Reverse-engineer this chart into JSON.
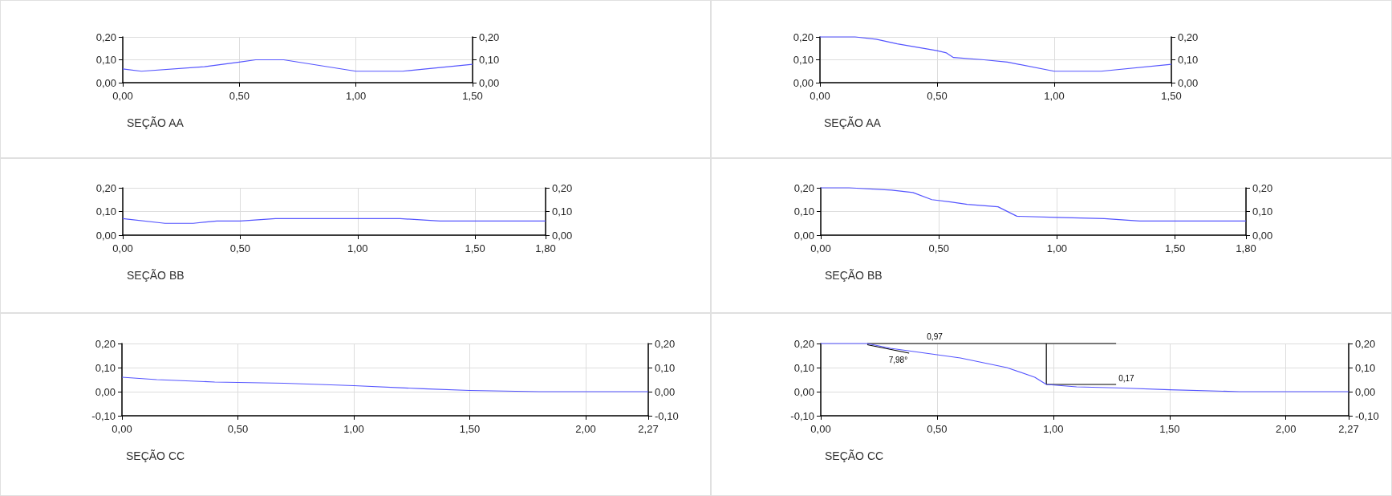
{
  "chart_data": [
    {
      "type": "line",
      "title": "SEÇÃO AA",
      "grid": true,
      "xlim": [
        0,
        1.5
      ],
      "xticks": [
        {
          "value": 0,
          "label": "0,00"
        },
        {
          "value": 0.5,
          "label": "0,50"
        },
        {
          "value": 1,
          "label": "1,00"
        },
        {
          "value": 1.5,
          "label": "1,50"
        }
      ],
      "ylim": [
        0,
        0.2
      ],
      "yticks": [
        {
          "value": 0,
          "label": "0,00"
        },
        {
          "value": 0.1,
          "label": "0,10"
        },
        {
          "value": 0.2,
          "label": "0,20"
        }
      ],
      "y2lim": [
        0,
        0.2
      ],
      "y2ticks": [
        {
          "value": 0,
          "label": "0,00"
        },
        {
          "value": 0.1,
          "label": "0,10"
        },
        {
          "value": 0.2,
          "label": "0,20"
        }
      ],
      "series": [
        {
          "color": "#5555ff",
          "x": [
            0,
            0.08,
            0.35,
            0.5,
            0.57,
            0.69,
            1.0,
            1.2,
            1.5
          ],
          "values": [
            0.06,
            0.05,
            0.07,
            0.09,
            0.1,
            0.1,
            0.05,
            0.05,
            0.08
          ]
        }
      ]
    },
    {
      "type": "line",
      "title": "SEÇÃO AA",
      "grid": true,
      "xlim": [
        0,
        1.5
      ],
      "xticks": [
        {
          "value": 0,
          "label": "0,00"
        },
        {
          "value": 0.5,
          "label": "0,50"
        },
        {
          "value": 1,
          "label": "1,00"
        },
        {
          "value": 1.5,
          "label": "1,50"
        }
      ],
      "ylim": [
        0,
        0.2
      ],
      "yticks": [
        {
          "value": 0,
          "label": "0,00"
        },
        {
          "value": 0.1,
          "label": "0,10"
        },
        {
          "value": 0.2,
          "label": "0,20"
        }
      ],
      "y2lim": [
        0,
        0.2
      ],
      "y2ticks": [
        {
          "value": 0,
          "label": "0,00"
        },
        {
          "value": 0.1,
          "label": "0,10"
        },
        {
          "value": 0.2,
          "label": "0,20"
        }
      ],
      "series": [
        {
          "color": "#5555ff",
          "x": [
            0,
            0.15,
            0.24,
            0.33,
            0.5,
            0.54,
            0.57,
            0.7,
            0.8,
            1.0,
            1.2,
            1.5
          ],
          "values": [
            0.2,
            0.2,
            0.19,
            0.17,
            0.14,
            0.13,
            0.11,
            0.1,
            0.09,
            0.05,
            0.05,
            0.08
          ]
        }
      ]
    },
    {
      "type": "line",
      "title": "SEÇÃO BB",
      "grid": true,
      "xlim": [
        0,
        1.8
      ],
      "xticks": [
        {
          "value": 0,
          "label": "0,00"
        },
        {
          "value": 0.5,
          "label": "0,50"
        },
        {
          "value": 1,
          "label": "1,00"
        },
        {
          "value": 1.5,
          "label": "1,50"
        },
        {
          "value": 1.8,
          "label": "1,80"
        }
      ],
      "ylim": [
        0,
        0.2
      ],
      "yticks": [
        {
          "value": 0,
          "label": "0,00"
        },
        {
          "value": 0.1,
          "label": "0,10"
        },
        {
          "value": 0.2,
          "label": "0,20"
        }
      ],
      "y2lim": [
        0,
        0.2
      ],
      "y2ticks": [
        {
          "value": 0,
          "label": "0,00"
        },
        {
          "value": 0.1,
          "label": "0,10"
        },
        {
          "value": 0.2,
          "label": "0,20"
        }
      ],
      "series": [
        {
          "color": "#5555ff",
          "x": [
            0,
            0.18,
            0.3,
            0.4,
            0.5,
            0.65,
            1.0,
            1.18,
            1.35,
            1.8
          ],
          "values": [
            0.07,
            0.05,
            0.05,
            0.06,
            0.06,
            0.07,
            0.07,
            0.07,
            0.06,
            0.06
          ]
        }
      ]
    },
    {
      "type": "line",
      "title": "SEÇÃO BB",
      "grid": true,
      "xlim": [
        0,
        1.8
      ],
      "xticks": [
        {
          "value": 0,
          "label": "0,00"
        },
        {
          "value": 0.5,
          "label": "0,50"
        },
        {
          "value": 1,
          "label": "1,00"
        },
        {
          "value": 1.5,
          "label": "1,50"
        },
        {
          "value": 1.8,
          "label": "1,80"
        }
      ],
      "ylim": [
        0,
        0.2
      ],
      "yticks": [
        {
          "value": 0,
          "label": "0,00"
        },
        {
          "value": 0.1,
          "label": "0,10"
        },
        {
          "value": 0.2,
          "label": "0,20"
        }
      ],
      "y2lim": [
        0,
        0.2
      ],
      "y2ticks": [
        {
          "value": 0,
          "label": "0,00"
        },
        {
          "value": 0.1,
          "label": "0,10"
        },
        {
          "value": 0.2,
          "label": "0,20"
        }
      ],
      "series": [
        {
          "color": "#5555ff",
          "x": [
            0,
            0.12,
            0.3,
            0.39,
            0.47,
            0.55,
            0.62,
            0.75,
            0.83,
            1.0,
            1.2,
            1.35,
            1.8
          ],
          "values": [
            0.2,
            0.2,
            0.19,
            0.18,
            0.15,
            0.14,
            0.13,
            0.12,
            0.08,
            0.075,
            0.07,
            0.06,
            0.06
          ]
        }
      ]
    },
    {
      "type": "line",
      "title": "SEÇÃO CC",
      "grid": true,
      "xlim": [
        0,
        2.27
      ],
      "xticks": [
        {
          "value": 0,
          "label": "0,00"
        },
        {
          "value": 0.5,
          "label": "0,50"
        },
        {
          "value": 1,
          "label": "1,00"
        },
        {
          "value": 1.5,
          "label": "1,50"
        },
        {
          "value": 2,
          "label": "2,00"
        },
        {
          "value": 2.27,
          "label": "2,27"
        }
      ],
      "ylim": [
        -0.1,
        0.2
      ],
      "yticks": [
        {
          "value": -0.1,
          "label": "-0,10"
        },
        {
          "value": 0,
          "label": "0,00"
        },
        {
          "value": 0.1,
          "label": "0,10"
        },
        {
          "value": 0.2,
          "label": "0,20"
        }
      ],
      "y2lim": [
        -0.1,
        0.2
      ],
      "y2ticks": [
        {
          "value": -0.1,
          "label": "-0,10"
        },
        {
          "value": 0,
          "label": "0,00"
        },
        {
          "value": 0.1,
          "label": "0,10"
        },
        {
          "value": 0.2,
          "label": "0,20"
        }
      ],
      "series": [
        {
          "color": "#5555ff",
          "x": [
            0,
            0.15,
            0.4,
            0.7,
            1.0,
            1.3,
            1.5,
            1.8,
            2.27
          ],
          "values": [
            0.06,
            0.05,
            0.04,
            0.035,
            0.025,
            0.012,
            0.005,
            0,
            0
          ]
        }
      ]
    },
    {
      "type": "line",
      "title": "SEÇÃO CC",
      "grid": true,
      "xlim": [
        0,
        2.27
      ],
      "xticks": [
        {
          "value": 0,
          "label": "0,00"
        },
        {
          "value": 0.5,
          "label": "0,50"
        },
        {
          "value": 1,
          "label": "1,00"
        },
        {
          "value": 1.5,
          "label": "1,50"
        },
        {
          "value": 2,
          "label": "2,00"
        },
        {
          "value": 2.27,
          "label": "2,27"
        }
      ],
      "ylim": [
        -0.1,
        0.2
      ],
      "yticks": [
        {
          "value": -0.1,
          "label": "-0,10"
        },
        {
          "value": 0,
          "label": "0,00"
        },
        {
          "value": 0.1,
          "label": "0,10"
        },
        {
          "value": 0.2,
          "label": "0,20"
        }
      ],
      "y2lim": [
        -0.1,
        0.2
      ],
      "y2ticks": [
        {
          "value": -0.1,
          "label": "-0,10"
        },
        {
          "value": 0,
          "label": "0,00"
        },
        {
          "value": 0.1,
          "label": "0,10"
        },
        {
          "value": 0.2,
          "label": "0,20"
        }
      ],
      "series": [
        {
          "color": "#000000",
          "x": [
            0.2,
            1.27
          ],
          "values": [
            0.2,
            0.2
          ]
        },
        {
          "color": "#000000",
          "x": [
            0.97,
            0.97
          ],
          "values": [
            0.03,
            0.2
          ]
        },
        {
          "color": "#000000",
          "x": [
            0.97,
            1.27
          ],
          "values": [
            0.03,
            0.03
          ]
        },
        {
          "color": "#000000",
          "x": [
            0.2,
            0.38
          ],
          "values": [
            0.195,
            0.16
          ]
        },
        {
          "color": "#5555ff",
          "x": [
            0,
            0.2,
            0.3,
            0.45,
            0.6,
            0.8,
            0.92,
            0.97,
            1.1,
            1.3,
            1.5,
            1.8,
            2.27
          ],
          "values": [
            0.2,
            0.2,
            0.18,
            0.16,
            0.14,
            0.1,
            0.06,
            0.03,
            0.02,
            0.015,
            0.008,
            0,
            0
          ]
        }
      ],
      "annotations": [
        {
          "text": "0,97",
          "x": 0.49,
          "y": 0.2
        },
        {
          "text": "0,17",
          "x": 1.27,
          "y": 0.03
        },
        {
          "text": "7,98°",
          "x": 0.38,
          "y": 0.16
        }
      ]
    }
  ]
}
